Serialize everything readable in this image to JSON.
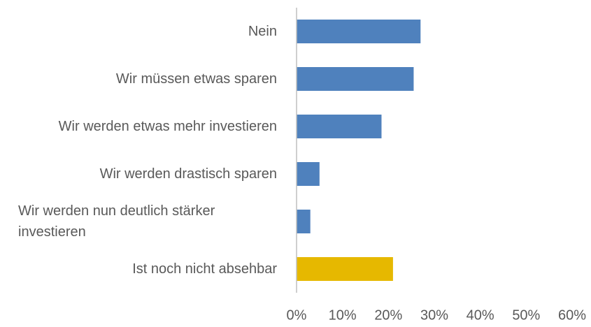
{
  "chart_data": {
    "type": "bar",
    "orientation": "horizontal",
    "categories": [
      "Nein",
      "Wir müssen etwas sparen",
      "Wir werden etwas mehr investieren",
      "Wir werden drastisch sparen",
      "Wir werden nun deutlich stärker investieren",
      "Ist noch nicht absehbar"
    ],
    "values": [
      27,
      25.5,
      18.5,
      5,
      3,
      21
    ],
    "colors": [
      "#4f81bd",
      "#4f81bd",
      "#4f81bd",
      "#4f81bd",
      "#4f81bd",
      "#e6b800"
    ],
    "xlim": [
      0,
      60
    ],
    "xticks": [
      {
        "value": 0,
        "label": "0%"
      },
      {
        "value": 10,
        "label": "10%"
      },
      {
        "value": 20,
        "label": "20%"
      },
      {
        "value": 30,
        "label": "30%"
      },
      {
        "value": 40,
        "label": "40%"
      },
      {
        "value": 50,
        "label": "50%"
      },
      {
        "value": 60,
        "label": "60%"
      }
    ],
    "grid": false
  }
}
